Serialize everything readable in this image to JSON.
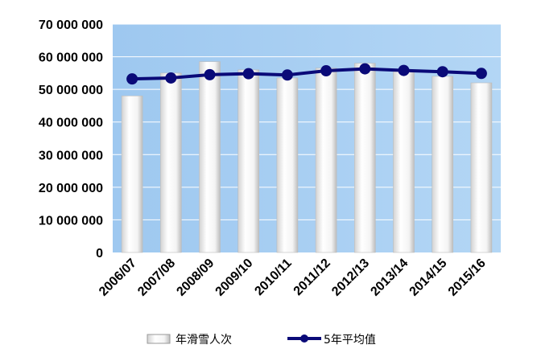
{
  "chart_data": {
    "type": "bar",
    "categories": [
      "2006/07",
      "2007/08",
      "2008/09",
      "2009/10",
      "2010/11",
      "2011/12",
      "2012/13",
      "2013/14",
      "2014/15",
      "2015/16"
    ],
    "series": [
      {
        "name": "年滑雪人次",
        "type": "bar",
        "values": [
          48000000,
          55000000,
          58500000,
          56000000,
          53500000,
          56500000,
          58000000,
          56000000,
          54000000,
          52000000
        ]
      },
      {
        "name": "5年平均值",
        "type": "line",
        "values": [
          53200000,
          53500000,
          54500000,
          54800000,
          54400000,
          55700000,
          56300000,
          55800000,
          55400000,
          54900000
        ]
      }
    ],
    "y_ticks": [
      "0",
      "10 000 000",
      "20 000 000",
      "30 000 000",
      "40 000 000",
      "50 000 000",
      "60 000 000",
      "70 000 000"
    ],
    "ylim": [
      0,
      70000000
    ],
    "grid": true,
    "legend_position": "bottom",
    "colors": {
      "plot_background": "#a7cdf1",
      "bar_fill": "#ffffff",
      "line": "#0a0a78",
      "grid": "#ffffff"
    }
  }
}
